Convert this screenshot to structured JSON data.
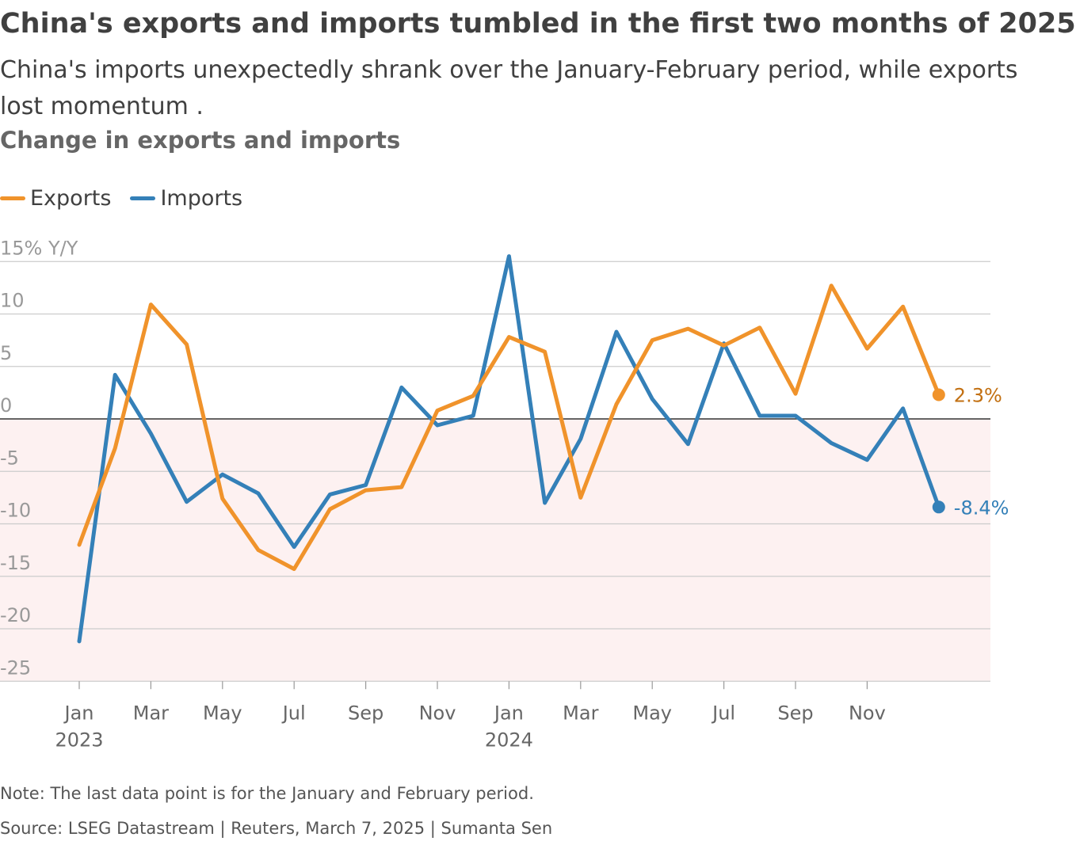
{
  "header": {
    "title": "China's exports and imports tumbled in the first two months of 2025",
    "subtitle": "China's imports unexpectedly shrank over the January-February period, while exports lost momentum .",
    "chart_heading": "Change in exports and imports"
  },
  "footer": {
    "note": "Note: The last data point is for the January and February period.",
    "source": "Source: LSEG Datastream | Reuters, March 7, 2025 | Sumanta Sen"
  },
  "colors": {
    "exports": "#f0932b",
    "imports": "#3480b8",
    "exports_label": "#c26f10",
    "negative_band": "#fdf1f1",
    "grid": "#cccccc",
    "zero_line": "#333333"
  },
  "chart_data": {
    "type": "line",
    "title": "Change in exports and imports",
    "y_unit_label": "15% Y/Y",
    "ylim": [
      -25,
      15
    ],
    "yticks": [
      15,
      10,
      5,
      0,
      -5,
      -10,
      -15,
      -20,
      -25
    ],
    "ytick_labels": [
      "15% Y/Y",
      "10",
      "5",
      "0",
      "-5",
      "-10",
      "-15",
      "-20",
      "-25"
    ],
    "grid": true,
    "negative_region_shaded": true,
    "legend": {
      "placement": "top-left",
      "entries": [
        "Exports",
        "Imports"
      ]
    },
    "x": [
      "Jan 2023",
      "Feb 2023",
      "Mar 2023",
      "Apr 2023",
      "May 2023",
      "Jun 2023",
      "Jul 2023",
      "Aug 2023",
      "Sep 2023",
      "Oct 2023",
      "Nov 2023",
      "Dec 2023",
      "Jan 2024",
      "Feb 2024",
      "Mar 2024",
      "Apr 2024",
      "May 2024",
      "Jun 2024",
      "Jul 2024",
      "Aug 2024",
      "Sep 2024",
      "Oct 2024",
      "Nov 2024",
      "Dec 2024",
      "Jan-Feb 2025"
    ],
    "xticks": [
      {
        "index": 0,
        "label": "Jan",
        "sublabel": "2023"
      },
      {
        "index": 2,
        "label": "Mar"
      },
      {
        "index": 4,
        "label": "May"
      },
      {
        "index": 6,
        "label": "Jul"
      },
      {
        "index": 8,
        "label": "Sep"
      },
      {
        "index": 10,
        "label": "Nov"
      },
      {
        "index": 12,
        "label": "Jan",
        "sublabel": "2024"
      },
      {
        "index": 14,
        "label": "Mar"
      },
      {
        "index": 16,
        "label": "May"
      },
      {
        "index": 18,
        "label": "Jul"
      },
      {
        "index": 20,
        "label": "Sep"
      },
      {
        "index": 22,
        "label": "Nov"
      }
    ],
    "series": [
      {
        "name": "Exports",
        "values": [
          -12.0,
          -2.8,
          10.9,
          7.1,
          -7.6,
          -12.5,
          -14.3,
          -8.6,
          -6.8,
          -6.5,
          0.8,
          2.2,
          7.8,
          6.4,
          -7.5,
          1.4,
          7.5,
          8.6,
          7.0,
          8.7,
          2.4,
          12.7,
          6.7,
          10.7,
          2.3
        ],
        "end_label": "2.3%"
      },
      {
        "name": "Imports",
        "values": [
          -21.2,
          4.2,
          -1.4,
          -7.9,
          -5.3,
          -7.1,
          -12.2,
          -7.2,
          -6.3,
          3.0,
          -0.6,
          0.3,
          15.5,
          -8.0,
          -1.9,
          8.3,
          1.9,
          -2.4,
          7.2,
          0.3,
          0.3,
          -2.3,
          -3.9,
          1.0,
          -8.4
        ],
        "end_label": "-8.4%"
      }
    ]
  }
}
